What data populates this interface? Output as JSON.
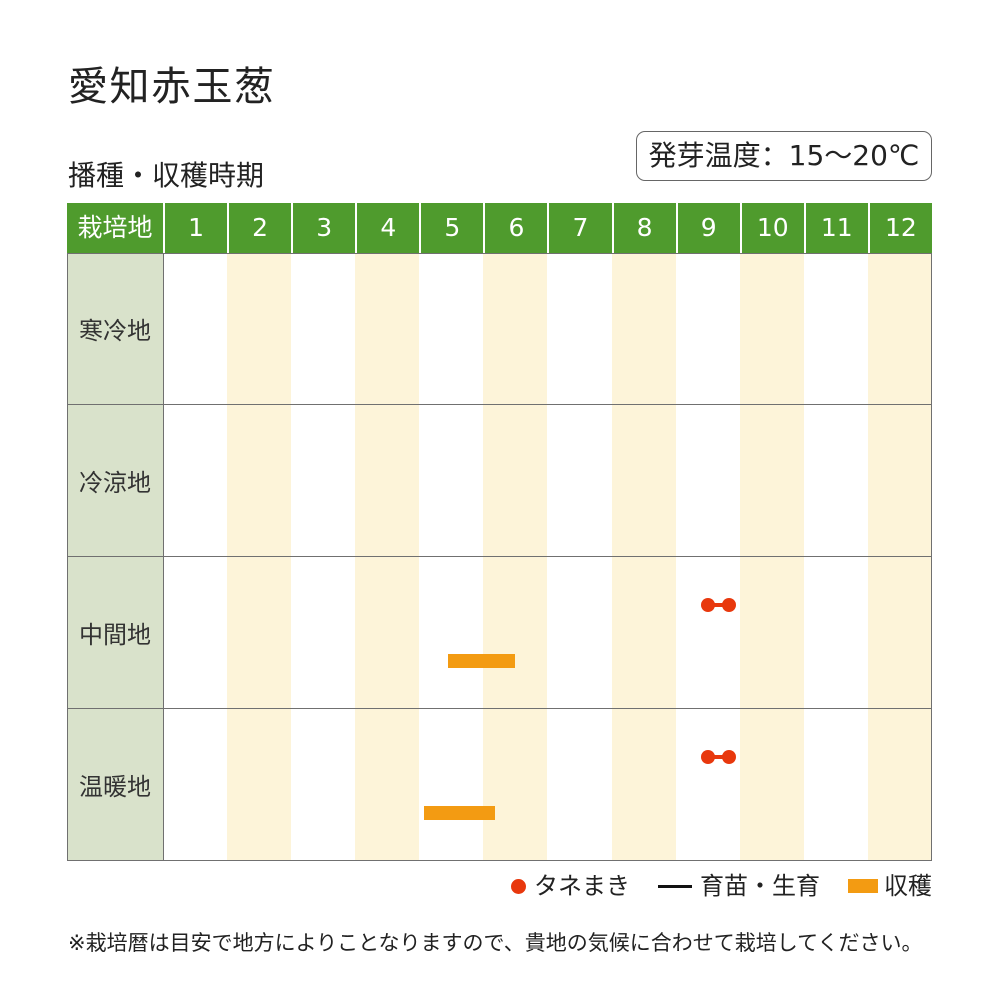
{
  "title": "愛知赤玉葱",
  "germination_badge": "発芽温度：15〜20℃",
  "colors": {
    "header_green": "#4f9b2d",
    "region_column": "#d9e2cb",
    "alternate_month": "#fdf4d9"
  },
  "chart_data": {
    "type": "bar",
    "title": "播種・収穫時期",
    "row_header": "栽培地",
    "x": [
      1,
      2,
      3,
      4,
      5,
      6,
      7,
      8,
      9,
      10,
      11,
      12
    ],
    "categories": [
      "寒冷地",
      "冷涼地",
      "中間地",
      "温暖地"
    ],
    "series": [
      {
        "name": "タネまき",
        "marker": "dot",
        "color": "#e8380d",
        "ranges": [
          {
            "category": "中間地",
            "start": 9.5,
            "end": 9.83
          },
          {
            "category": "温暖地",
            "start": 9.5,
            "end": 9.83
          }
        ]
      },
      {
        "name": "育苗・生育",
        "marker": "line",
        "color": "#111111",
        "ranges": []
      },
      {
        "name": "収穫",
        "marker": "bar",
        "color": "#f39b12",
        "ranges": [
          {
            "category": "中間地",
            "start": 5.45,
            "end": 6.5
          },
          {
            "category": "温暖地",
            "start": 5.08,
            "end": 6.18
          }
        ]
      }
    ],
    "legend_position": "bottom-right"
  },
  "footnote": "※栽培暦は目安で地方によりことなりますので、貴地の気候に合わせて栽培してください。"
}
